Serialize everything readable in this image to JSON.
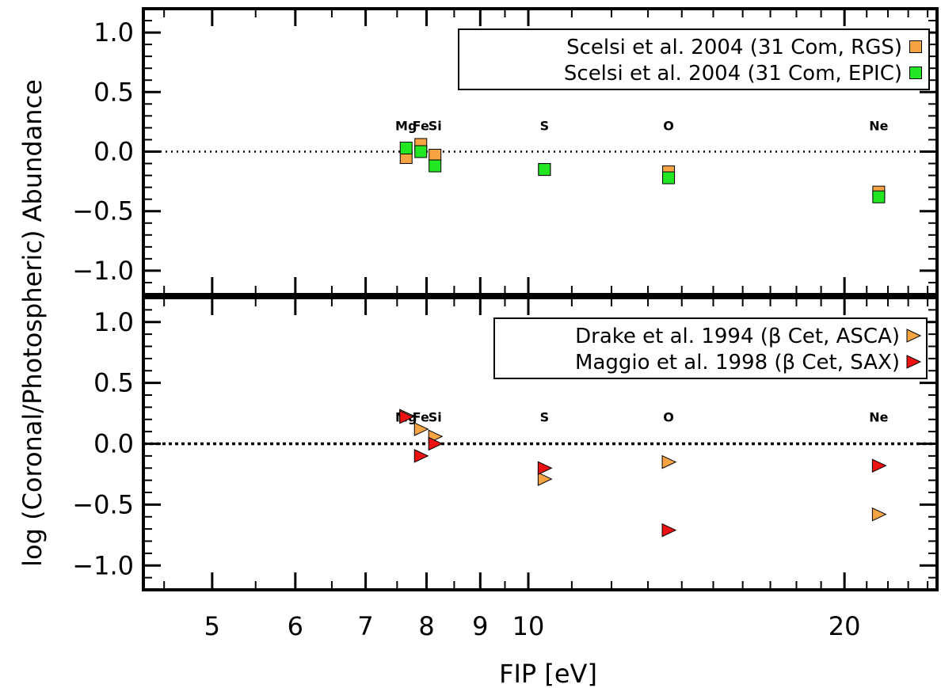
{
  "chart_data": {
    "type": "scatter",
    "xlabel": "FIP [eV]",
    "ylabel": "log (Coronal/Photospheric) Abundance",
    "x_scale": "log",
    "xlim": [
      4.3,
      24.5
    ],
    "x_ticks": [
      {
        "value": 5,
        "label": "5"
      },
      {
        "value": 6,
        "label": "6"
      },
      {
        "value": 7,
        "label": "7"
      },
      {
        "value": 8,
        "label": "8"
      },
      {
        "value": 9,
        "label": "9"
      },
      {
        "value": 10,
        "label": "10"
      },
      {
        "value": 20,
        "label": "20"
      }
    ],
    "y_ticks": [
      {
        "value": 1.0,
        "label": "1.0"
      },
      {
        "value": 0.5,
        "label": "0.5"
      },
      {
        "value": 0.0,
        "label": "0.0"
      },
      {
        "value": -0.5,
        "label": "−0.5"
      },
      {
        "value": -1.0,
        "label": "−1.0"
      }
    ],
    "element_labels": [
      {
        "label": "Mg",
        "x": 7.65
      },
      {
        "label": "Fe",
        "x": 7.9
      },
      {
        "label": "Si",
        "x": 8.15
      },
      {
        "label": "S",
        "x": 10.36
      },
      {
        "label": "O",
        "x": 13.6
      },
      {
        "label": "Ne",
        "x": 21.56
      }
    ],
    "panels": [
      {
        "ylim": [
          -1.2,
          1.2
        ],
        "legend_position": "top-right",
        "series": [
          {
            "name": "Scelsi et al. 2004 (31 Com, RGS)",
            "marker": "square",
            "color": "#F5A343",
            "x": [
              7.65,
              7.9,
              8.15,
              10.36,
              13.6,
              21.56
            ],
            "y": [
              -0.05,
              0.06,
              -0.03,
              -0.15,
              -0.17,
              -0.34
            ]
          },
          {
            "name": "Scelsi et al. 2004 (31 Com, EPIC)",
            "marker": "square",
            "color": "#22E622",
            "x": [
              7.65,
              7.9,
              8.15,
              10.36,
              13.6,
              21.56
            ],
            "y": [
              0.03,
              0.0,
              -0.12,
              -0.15,
              -0.22,
              -0.38
            ]
          }
        ]
      },
      {
        "ylim": [
          -1.2,
          1.2
        ],
        "legend_position": "top-right",
        "series": [
          {
            "name": "Drake et al. 1994 (β Cet, ASCA)",
            "marker": "triangle-right",
            "color": "#F5A343",
            "x": [
              7.65,
              7.9,
              8.15,
              10.36,
              13.6,
              21.56
            ],
            "y": [
              0.23,
              0.12,
              0.06,
              -0.29,
              -0.15,
              -0.58
            ]
          },
          {
            "name": "Maggio et al. 1998 (β Cet, SAX)",
            "marker": "triangle-right",
            "color": "#EE1111",
            "x": [
              7.65,
              7.9,
              8.15,
              10.36,
              13.6,
              21.56
            ],
            "y": [
              0.22,
              -0.1,
              0.0,
              -0.2,
              -0.71,
              -0.18
            ]
          }
        ]
      }
    ]
  }
}
